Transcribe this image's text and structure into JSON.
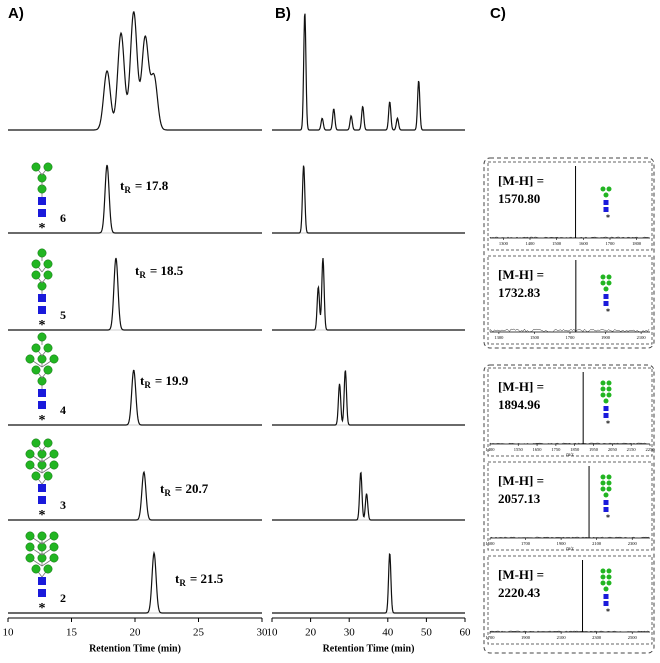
{
  "panel_labels": [
    "A)",
    "B)",
    "C)"
  ],
  "asterisk": "*",
  "panel_a": {
    "xlabel": "Retention Time (min)",
    "xlim": [
      10,
      30
    ],
    "xticks": [
      10,
      15,
      20,
      25,
      30
    ],
    "overview": [
      {
        "t": 17.8,
        "h": 0.5
      },
      {
        "t": 18.9,
        "h": 0.82
      },
      {
        "t": 19.9,
        "h": 1.0
      },
      {
        "t": 20.8,
        "h": 0.78
      },
      {
        "t": 21.5,
        "h": 0.45
      }
    ],
    "traces": [
      {
        "number": "6",
        "t": "t",
        "sub": "R",
        "text": "= 17.8",
        "tR": 17.8
      },
      {
        "number": "5",
        "t": "t",
        "sub": "R",
        "text": "= 18.5",
        "tR": 18.5
      },
      {
        "number": "4",
        "t": "t",
        "sub": "R",
        "text": "= 19.9",
        "tR": 19.9
      },
      {
        "number": "3",
        "t": "t",
        "sub": "R",
        "text": "= 20.7",
        "tR": 20.7
      },
      {
        "number": "2",
        "t": "t",
        "sub": "R",
        "text": "= 21.5",
        "tR": 21.5
      }
    ]
  },
  "panel_b": {
    "xlabel": "Retention Time (min)",
    "xlim": [
      10,
      60
    ],
    "xticks": [
      10,
      20,
      30,
      40,
      50,
      60
    ],
    "overview": [
      {
        "t": 18.5,
        "h": 1.0
      },
      {
        "t": 23,
        "h": 0.1
      },
      {
        "t": 26,
        "h": 0.18
      },
      {
        "t": 30.5,
        "h": 0.12
      },
      {
        "t": 33.5,
        "h": 0.2
      },
      {
        "t": 40.5,
        "h": 0.24
      },
      {
        "t": 42.5,
        "h": 0.1
      },
      {
        "t": 48,
        "h": 0.42
      }
    ],
    "traces": [
      [
        {
          "t": 18.2,
          "h": 1.0
        }
      ],
      [
        {
          "t": 22,
          "h": 0.6
        },
        {
          "t": 23.2,
          "h": 1.0
        }
      ],
      [
        {
          "t": 27.5,
          "h": 0.75
        },
        {
          "t": 29,
          "h": 1.0
        }
      ],
      [
        {
          "t": 33,
          "h": 1.0
        },
        {
          "t": 34.5,
          "h": 0.55
        }
      ],
      [
        {
          "t": 40.5,
          "h": 1.0
        }
      ]
    ]
  },
  "panel_c": {
    "spectra": [
      {
        "label": "[M-H] =",
        "mass": "1570.80",
        "peak": 1570.8,
        "xlim": [
          1250,
          1850
        ],
        "xticks": [
          1300,
          1400,
          1500,
          1600,
          1700,
          1800
        ]
      },
      {
        "label": "[M-H] =",
        "mass": "1732.83",
        "peak": 1732.83,
        "xlim": [
          1250,
          2150
        ],
        "xticks": [
          1300,
          1500,
          1700,
          1900,
          2100
        ]
      },
      {
        "label": "[M-H] =",
        "mass": "1894.96",
        "peak": 1894.96,
        "xlim": [
          1400,
          2250
        ],
        "xticks": [
          1400,
          1550,
          1650,
          1750,
          1850,
          1950,
          2050,
          2150,
          2250
        ],
        "xlabel": "m/z"
      },
      {
        "label": "[M-H] =",
        "mass": "2057.13",
        "peak": 2057.13,
        "xlim": [
          1500,
          2400
        ],
        "xticks": [
          1500,
          1700,
          1900,
          2100,
          2300
        ],
        "xlabel": "m/z"
      },
      {
        "label": "[M-H] =",
        "mass": "2220.43",
        "peak": 2220.43,
        "xlim": [
          1700,
          2600
        ],
        "xticks": [
          1700,
          1900,
          2100,
          2300,
          2500
        ]
      }
    ]
  }
}
